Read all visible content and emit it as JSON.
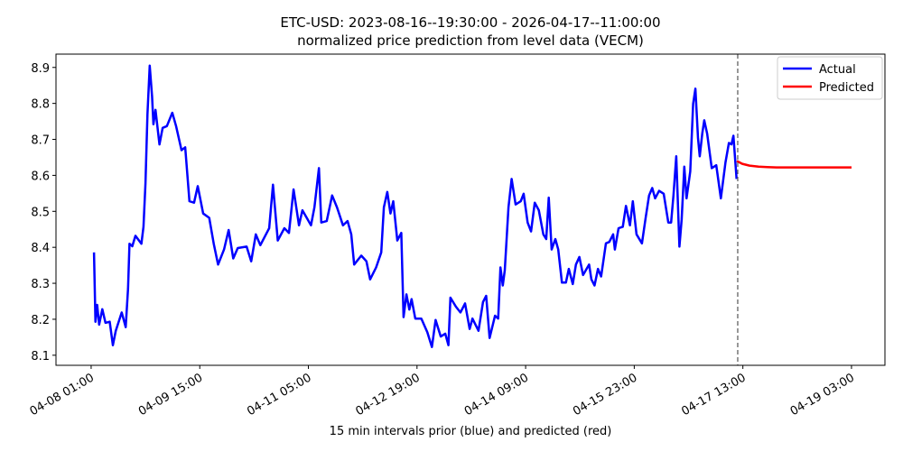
{
  "chart_data": {
    "type": "line",
    "title": "ETC-USD: 2023-08-16--19:30:00 - 2026-04-17--11:00:00",
    "subtitle": "normalized price prediction from level data (VECM)",
    "xlabel": "15 min intervals prior (blue) and predicted (red)",
    "ylabel": "",
    "x_unit": "hours since 04-08 01:00",
    "xlim": [
      -12.3,
      277.7
    ],
    "ylim": [
      8.072,
      8.937
    ],
    "grid": false,
    "legend_placement": "top-right",
    "x_ticks": [
      {
        "value": 0,
        "label": "04-08 01:00"
      },
      {
        "value": 38,
        "label": "04-09 15:00"
      },
      {
        "value": 76,
        "label": "04-11 05:00"
      },
      {
        "value": 114,
        "label": "04-12 19:00"
      },
      {
        "value": 152,
        "label": "04-14 09:00"
      },
      {
        "value": 190,
        "label": "04-15 23:00"
      },
      {
        "value": 228,
        "label": "04-17 13:00"
      },
      {
        "value": 266,
        "label": "04-19 03:00"
      }
    ],
    "y_ticks": [
      {
        "value": 8.1,
        "label": "8.1"
      },
      {
        "value": 8.2,
        "label": "8.2"
      },
      {
        "value": 8.3,
        "label": "8.3"
      },
      {
        "value": 8.4,
        "label": "8.4"
      },
      {
        "value": 8.5,
        "label": "8.5"
      },
      {
        "value": 8.6,
        "label": "8.6"
      },
      {
        "value": 8.7,
        "label": "8.7"
      },
      {
        "value": 8.8,
        "label": "8.8"
      },
      {
        "value": 8.9,
        "label": "8.9"
      }
    ],
    "forecast_start": 226.2,
    "series": [
      {
        "name": "Actual",
        "color": "#0000ff",
        "x": [
          1.0,
          1.5,
          2.1,
          2.8,
          3.9,
          5.0,
          6.5,
          7.6,
          8.6,
          10.7,
          12.1,
          12.9,
          13.4,
          14.4,
          15.5,
          17.6,
          18.3,
          19.0,
          19.7,
          20.5,
          21.3,
          21.8,
          22.5,
          23.9,
          25.0,
          26.5,
          28.4,
          29.7,
          31.6,
          32.9,
          34.4,
          36.0,
          37.3,
          39.2,
          41.3,
          42.9,
          44.4,
          46.5,
          48.1,
          49.7,
          51.3,
          54.4,
          56.0,
          57.6,
          59.2,
          62.3,
          63.6,
          65.3,
          67.6,
          69.2,
          70.8,
          72.7,
          73.9,
          76.9,
          78.1,
          79.7,
          80.5,
          82.4,
          84.3,
          86.0,
          88.1,
          89.7,
          91.0,
          92.0,
          94.5,
          96.3,
          97.6,
          99.7,
          101.5,
          102.4,
          103.6,
          104.7,
          105.7,
          107.1,
          108.5,
          109.3,
          110.3,
          111.3,
          112.1,
          113.4,
          115.5,
          117.6,
          119.2,
          120.5,
          122.3,
          123.9,
          125.0,
          125.7,
          127.6,
          129.2,
          130.8,
          132.4,
          133.4,
          135.5,
          137.1,
          138.2,
          139.4,
          141.3,
          142.4,
          143.2,
          144.0,
          144.7,
          146.0,
          147.1,
          148.5,
          150.3,
          151.3,
          152.7,
          153.9,
          155.2,
          156.6,
          158.2,
          159.2,
          160.1,
          161.1,
          162.4,
          163.4,
          164.7,
          166.1,
          167.1,
          168.5,
          169.6,
          170.8,
          172.1,
          174.2,
          175.0,
          176.1,
          177.3,
          178.4,
          180.1,
          181.3,
          182.6,
          183.2,
          184.5,
          186.0,
          187.1,
          188.5,
          189.5,
          190.8,
          192.7,
          194.0,
          195.2,
          196.3,
          197.3,
          198.7,
          200.3,
          201.9,
          202.9,
          203.7,
          204.7,
          205.8,
          206.6,
          207.5,
          208.3,
          209.6,
          210.6,
          211.4,
          212.3,
          212.9,
          213.8,
          214.5,
          215.5,
          217.1,
          218.7,
          220.3,
          221.9,
          223.1,
          224.0,
          224.7,
          225.8
        ],
        "values": [
          8.386,
          8.193,
          8.24,
          8.185,
          8.228,
          8.19,
          8.193,
          8.128,
          8.168,
          8.219,
          8.178,
          8.285,
          8.41,
          8.403,
          8.432,
          8.41,
          8.457,
          8.578,
          8.77,
          8.905,
          8.82,
          8.742,
          8.782,
          8.686,
          8.732,
          8.737,
          8.774,
          8.737,
          8.67,
          8.678,
          8.528,
          8.524,
          8.57,
          8.494,
          8.482,
          8.41,
          8.352,
          8.394,
          8.448,
          8.369,
          8.398,
          8.402,
          8.361,
          8.436,
          8.406,
          8.453,
          8.574,
          8.419,
          8.453,
          8.44,
          8.561,
          8.461,
          8.503,
          8.461,
          8.511,
          8.62,
          8.469,
          8.473,
          8.544,
          8.511,
          8.461,
          8.473,
          8.436,
          8.352,
          8.377,
          8.361,
          8.311,
          8.344,
          8.386,
          8.511,
          8.554,
          8.494,
          8.528,
          8.419,
          8.44,
          8.206,
          8.269,
          8.227,
          8.256,
          8.202,
          8.202,
          8.164,
          8.123,
          8.198,
          8.152,
          8.16,
          8.128,
          8.26,
          8.235,
          8.219,
          8.244,
          8.173,
          8.202,
          8.168,
          8.248,
          8.265,
          8.148,
          8.21,
          8.202,
          8.344,
          8.294,
          8.336,
          8.511,
          8.59,
          8.519,
          8.528,
          8.549,
          8.469,
          8.444,
          8.524,
          8.503,
          8.436,
          8.423,
          8.538,
          8.394,
          8.423,
          8.394,
          8.302,
          8.302,
          8.34,
          8.298,
          8.352,
          8.373,
          8.323,
          8.352,
          8.311,
          8.294,
          8.34,
          8.319,
          8.411,
          8.415,
          8.436,
          8.394,
          8.453,
          8.457,
          8.515,
          8.461,
          8.528,
          8.436,
          8.411,
          8.482,
          8.544,
          8.565,
          8.536,
          8.557,
          8.549,
          8.469,
          8.469,
          8.544,
          8.653,
          8.402,
          8.478,
          8.624,
          8.536,
          8.611,
          8.799,
          8.841,
          8.703,
          8.653,
          8.716,
          8.753,
          8.716,
          8.62,
          8.628,
          8.536,
          8.636,
          8.69,
          8.686,
          8.71,
          8.59
        ]
      },
      {
        "name": "Predicted",
        "color": "#ff0000",
        "x": [
          225.9,
          227.8,
          230.3,
          233.5,
          236.5,
          239.8,
          250,
          266
        ],
        "values": [
          8.64,
          8.632,
          8.627,
          8.624,
          8.623,
          8.622,
          8.622,
          8.622
        ]
      }
    ]
  }
}
